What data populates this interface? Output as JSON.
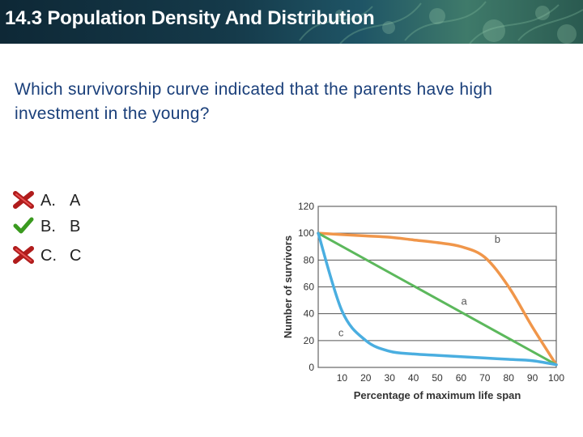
{
  "slide": {
    "title": "14.3 Population Density And Distribution",
    "question": "Which survivorship curve indicated that the parents have high investment in the young?"
  },
  "options": [
    {
      "letter": "A.",
      "text": "A",
      "status": "incorrect"
    },
    {
      "letter": "B.",
      "text": "B",
      "status": "correct"
    },
    {
      "letter": "C.",
      "text": "C",
      "status": "incorrect"
    }
  ],
  "colors": {
    "title_text": "#ffffff",
    "question_text": "#1a3f7a",
    "incorrect_mark": "#b01c1c",
    "correct_mark": "#3a9a1f",
    "curve_a": "#5cb85c",
    "curve_b": "#f0964a",
    "curve_c": "#4aaee0"
  },
  "chart_data": {
    "type": "line",
    "title": "",
    "xlabel": "Percentage of maximum life span",
    "ylabel": "Number of survivors",
    "xlim": [
      0,
      100
    ],
    "ylim": [
      0,
      120
    ],
    "x_ticks": [
      10,
      20,
      30,
      40,
      50,
      60,
      70,
      80,
      90,
      100
    ],
    "y_ticks": [
      0,
      20,
      40,
      60,
      80,
      100,
      120
    ],
    "grid": "horizontal",
    "x": [
      0,
      10,
      20,
      30,
      40,
      50,
      60,
      70,
      80,
      90,
      100
    ],
    "series": [
      {
        "name": "b",
        "color": "#f0964a",
        "values": [
          100,
          99,
          98,
          97,
          95,
          93,
          90,
          82,
          60,
          30,
          2
        ]
      },
      {
        "name": "a",
        "color": "#5cb85c",
        "values": [
          100,
          90,
          80,
          70,
          60,
          50,
          40,
          30,
          20,
          10,
          2
        ]
      },
      {
        "name": "c",
        "color": "#4aaee0",
        "values": [
          100,
          42,
          20,
          12,
          10,
          9,
          8,
          7,
          6,
          5,
          2
        ]
      }
    ]
  }
}
